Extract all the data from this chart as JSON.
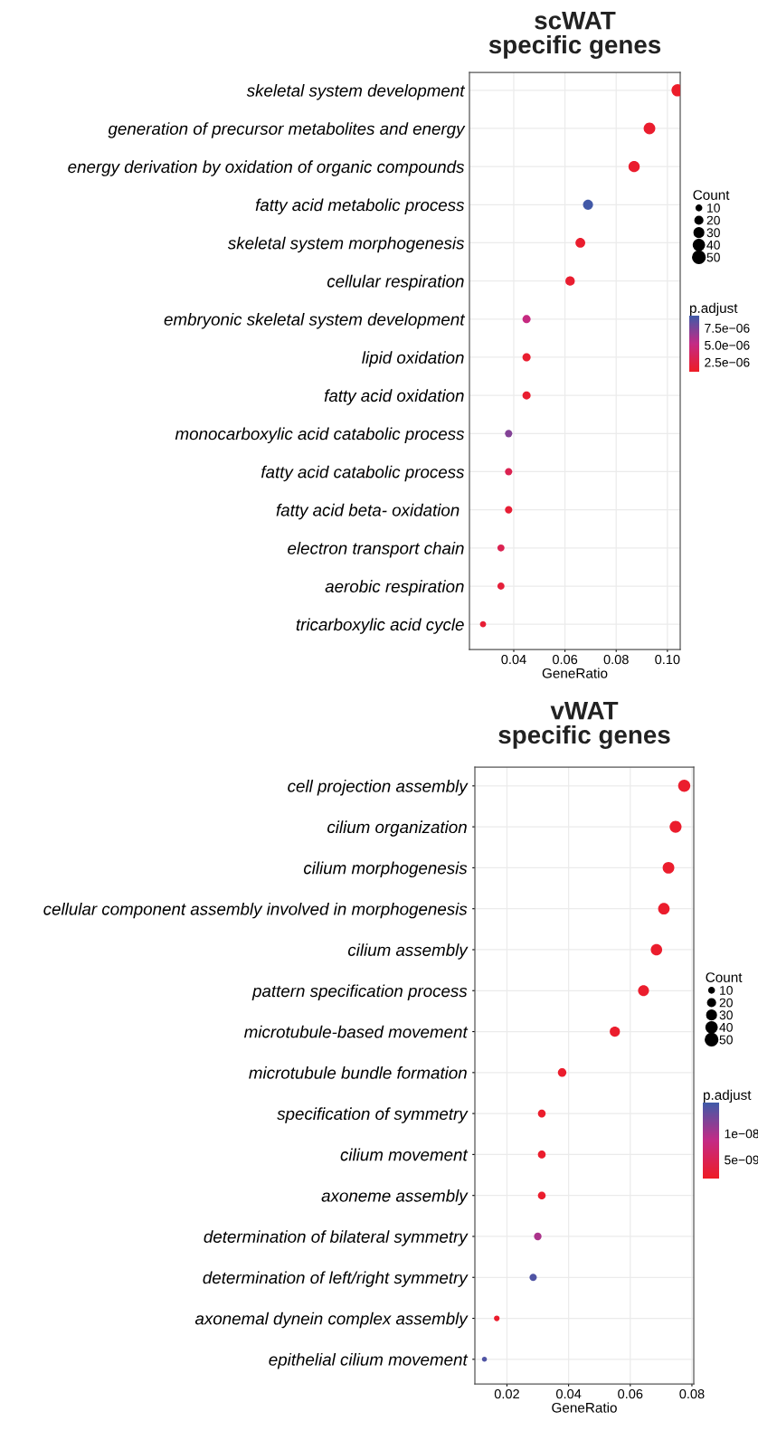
{
  "chart_data": [
    {
      "type": "bubble",
      "title": "scWAT\nspecific genes",
      "xlabel": "GeneRatio",
      "legend_title": "Count",
      "clabel": "p.adjust",
      "grid": true,
      "categories": [
        "skeletal system development",
        "generation of precursor metabolites and energy",
        "energy derivation by oxidation of organic compounds",
        "fatty acid metabolic process",
        "skeletal system morphogenesis",
        "cellular respiration",
        "embryonic skeletal system development",
        "lipid oxidation",
        "fatty acid oxidation",
        "monocarboxylic acid catabolic process",
        "fatty acid catabolic process",
        "fatty acid beta- oxidation ",
        "electron transport chain",
        "aerobic respiration",
        "tricarboxylic acid cycle"
      ],
      "values": [
        0.104,
        0.093,
        0.087,
        0.069,
        0.066,
        0.062,
        0.045,
        0.045,
        0.045,
        0.038,
        0.038,
        0.038,
        0.035,
        0.035,
        0.028
      ],
      "sizes": [
        48,
        43,
        40,
        32,
        30,
        28,
        21,
        21,
        21,
        17,
        17,
        17,
        16,
        16,
        12
      ],
      "cvalues": [
        1.3e-06,
        1.5e-06,
        1.5e-06,
        9.2e-06,
        1.5e-06,
        1.6e-06,
        5e-06,
        1.6e-06,
        1.6e-06,
        7.2e-06,
        3e-06,
        1.8e-06,
        3e-06,
        2e-06,
        1.8e-06
      ],
      "size_legend": [
        10,
        20,
        30,
        40,
        50
      ],
      "clim": [
        1.1e-06,
        9.3e-06
      ],
      "cticks": [
        {
          "value": 7.5e-06,
          "label": "7.5e−06"
        },
        {
          "value": 5e-06,
          "label": "5.0e−06"
        },
        {
          "value": 2.5e-06,
          "label": "2.5e−06"
        }
      ],
      "xlim": [
        0.0227,
        0.105
      ],
      "xticks": [
        0.04,
        0.06,
        0.08,
        {
          "value": 0.1,
          "label": "0.10"
        }
      ],
      "orientation": "horizontal"
    },
    {
      "type": "bubble",
      "title": "vWAT\nspecific genes",
      "xlabel": "GeneRatio",
      "legend_title": "Count",
      "clabel": "p.adjust",
      "grid": true,
      "categories": [
        "cell projection assembly",
        "cilium organization",
        "cilium morphogenesis",
        "cellular component assembly involved in morphogenesis",
        "cilium assembly",
        "pattern specification process",
        "microtubule-based movement",
        "microtubule bundle formation",
        "specification of symmetry",
        "cilium movement",
        "axoneme assembly",
        "determination of bilateral symmetry",
        "determination of left/right symmetry",
        "axonemal dynein complex assembly",
        "epithelial cilium movement"
      ],
      "values": [
        0.0775,
        0.0747,
        0.0724,
        0.0709,
        0.0685,
        0.0643,
        0.055,
        0.0379,
        0.0313,
        0.0313,
        0.0313,
        0.03,
        0.0285,
        0.0167,
        0.0127
      ],
      "sizes": [
        47,
        45,
        43,
        42,
        41,
        38,
        33,
        23,
        19,
        19,
        19,
        18,
        17,
        10,
        8
      ],
      "cvalues": [
        2e-09,
        2e-09,
        2e-09,
        2e-09,
        2e-09,
        2e-09,
        2e-09,
        2e-09,
        2e-09,
        2e-09,
        2e-09,
        1e-08,
        1.5e-08,
        2e-09,
        1.5e-08
      ],
      "size_legend": [
        10,
        20,
        30,
        40,
        50
      ],
      "clim": [
        1.4e-09,
        1.59e-08
      ],
      "cticks": [
        {
          "value": 1e-08,
          "label": "1e−08"
        },
        {
          "value": 5e-09,
          "label": "5e−09"
        }
      ],
      "xlim": [
        0.0096,
        0.0806
      ],
      "xticks": [
        0.02,
        0.04,
        0.06,
        0.08
      ],
      "orientation": "horizontal"
    }
  ]
}
